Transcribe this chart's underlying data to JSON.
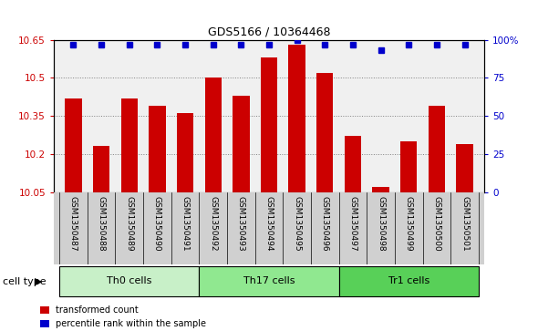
{
  "title": "GDS5166 / 10364468",
  "samples": [
    "GSM1350487",
    "GSM1350488",
    "GSM1350489",
    "GSM1350490",
    "GSM1350491",
    "GSM1350492",
    "GSM1350493",
    "GSM1350494",
    "GSM1350495",
    "GSM1350496",
    "GSM1350497",
    "GSM1350498",
    "GSM1350499",
    "GSM1350500",
    "GSM1350501"
  ],
  "transformed_count": [
    10.42,
    10.23,
    10.42,
    10.39,
    10.36,
    10.5,
    10.43,
    10.58,
    10.63,
    10.52,
    10.27,
    10.07,
    10.25,
    10.39,
    10.24
  ],
  "percentile_rank": [
    97,
    97,
    97,
    97,
    97,
    97,
    97,
    97,
    100,
    97,
    97,
    93,
    97,
    97,
    97
  ],
  "cell_types": [
    {
      "label": "Th0 cells",
      "start": 0,
      "end": 5,
      "color": "#c8f0c8"
    },
    {
      "label": "Th17 cells",
      "start": 5,
      "end": 10,
      "color": "#90e890"
    },
    {
      "label": "Tr1 cells",
      "start": 10,
      "end": 15,
      "color": "#58d058"
    }
  ],
  "ylim_left": [
    10.05,
    10.65
  ],
  "ylim_right": [
    0,
    100
  ],
  "yticks_left": [
    10.05,
    10.2,
    10.35,
    10.5,
    10.65
  ],
  "ytick_labels_left": [
    "10.05",
    "10.2",
    "10.35",
    "10.5",
    "10.65"
  ],
  "yticks_right": [
    0,
    25,
    50,
    75,
    100
  ],
  "ytick_labels_right": [
    "0",
    "25",
    "50",
    "75",
    "100%"
  ],
  "bar_color": "#cc0000",
  "dot_color": "#0000cc",
  "background_plot": "#f0f0f0",
  "background_xtick": "#d0d0d0",
  "bar_bottom": 10.05,
  "legend_items": [
    {
      "label": "transformed count",
      "color": "#cc0000",
      "marker": "s"
    },
    {
      "label": "percentile rank within the sample",
      "color": "#0000cc",
      "marker": "s"
    }
  ],
  "cell_type_label": "cell type"
}
